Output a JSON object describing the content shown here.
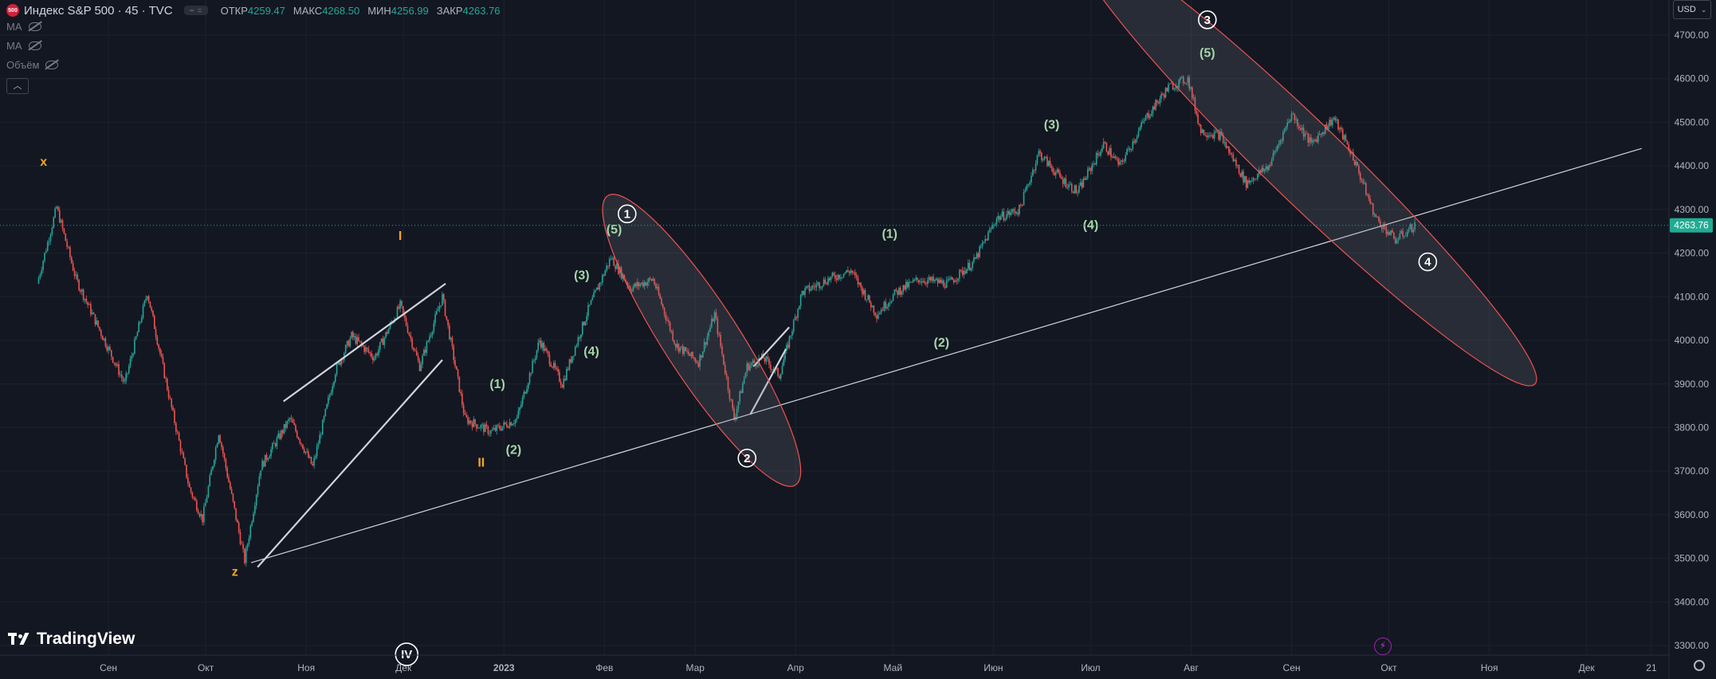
{
  "header": {
    "symbol_badge": "500",
    "symbol_title": "Индекс S&P 500 · 45 · TVC",
    "ohlc": [
      {
        "label": "ОТКР",
        "value": "4259.47"
      },
      {
        "label": "МАКС",
        "value": "4268.50"
      },
      {
        "label": "МИН",
        "value": "4256.99"
      },
      {
        "label": "ЗАКР",
        "value": "4263.76"
      }
    ],
    "indicators": [
      "MA",
      "MA",
      "Объём"
    ],
    "currency": "USD"
  },
  "branding": {
    "name": "TradingView"
  },
  "colors": {
    "background": "#131722",
    "grid": "#1e222d",
    "axis_text": "#b2b5be",
    "up": "#26a69a",
    "down": "#ef5350",
    "trendline": "#d1d4dc",
    "label_green": "#a5d6a7",
    "label_orange": "#f5a623",
    "label_white": "#ffffff",
    "ellipse_stroke": "#ef5350",
    "price_tag": "#22ab94"
  },
  "chart_data": {
    "type": "candlestick",
    "timeframe": "45",
    "ylim": [
      3290,
      4770
    ],
    "y_ticks": [
      3300,
      3400,
      3500,
      3600,
      3700,
      3800,
      3900,
      4000,
      4100,
      4200,
      4300,
      4400,
      4500,
      4600,
      4700
    ],
    "y_tick_labels": [
      "3300.00",
      "3400.00",
      "3500.00",
      "3600.00",
      "3700.00",
      "3800.00",
      "3900.00",
      "4000.00",
      "4100.00",
      "4200.00",
      "4300.00",
      "4400.00",
      "4500.00",
      "4600.00",
      "4700.00"
    ],
    "x_ticks": [
      {
        "label": "Сен",
        "date": "2022-09-01"
      },
      {
        "label": "Окт",
        "date": "2022-10-01"
      },
      {
        "label": "Ноя",
        "date": "2022-11-01"
      },
      {
        "label": "Дек",
        "date": "2022-12-01"
      },
      {
        "label": "2023",
        "date": "2023-01-01"
      },
      {
        "label": "Фев",
        "date": "2023-02-01"
      },
      {
        "label": "Мар",
        "date": "2023-03-01"
      },
      {
        "label": "Апр",
        "date": "2023-04-01"
      },
      {
        "label": "Май",
        "date": "2023-05-01"
      },
      {
        "label": "Июн",
        "date": "2023-06-01"
      },
      {
        "label": "Июл",
        "date": "2023-07-01"
      },
      {
        "label": "Авг",
        "date": "2023-08-01"
      },
      {
        "label": "Сен",
        "date": "2023-09-01"
      },
      {
        "label": "Окт",
        "date": "2023-10-01"
      },
      {
        "label": "Ноя",
        "date": "2023-11-01"
      },
      {
        "label": "Дек",
        "date": "2023-12-01"
      },
      {
        "label": "21",
        "date": "2023-12-21"
      }
    ],
    "last_price": 4263.76,
    "last_price_label": "4263.76",
    "price_path": [
      [
        "2022-08-10",
        4130
      ],
      [
        "2022-08-16",
        4305
      ],
      [
        "2022-08-22",
        4140
      ],
      [
        "2022-08-27",
        4060
      ],
      [
        "2022-09-06",
        3900
      ],
      [
        "2022-09-13",
        4110
      ],
      [
        "2022-09-20",
        3860
      ],
      [
        "2022-09-26",
        3660
      ],
      [
        "2022-09-30",
        3590
      ],
      [
        "2022-10-05",
        3790
      ],
      [
        "2022-10-13",
        3495
      ],
      [
        "2022-10-18",
        3710
      ],
      [
        "2022-10-27",
        3820
      ],
      [
        "2022-11-03",
        3710
      ],
      [
        "2022-11-10",
        3930
      ],
      [
        "2022-11-15",
        4010
      ],
      [
        "2022-11-22",
        3960
      ],
      [
        "2022-11-30",
        4080
      ],
      [
        "2022-12-06",
        3940
      ],
      [
        "2022-12-13",
        4100
      ],
      [
        "2022-12-20",
        3820
      ],
      [
        "2022-12-28",
        3790
      ],
      [
        "2023-01-05",
        3820
      ],
      [
        "2023-01-12",
        4000
      ],
      [
        "2023-01-19",
        3900
      ],
      [
        "2023-01-27",
        4070
      ],
      [
        "2023-02-03",
        4190
      ],
      [
        "2023-02-09",
        4120
      ],
      [
        "2023-02-16",
        4140
      ],
      [
        "2023-02-23",
        3990
      ],
      [
        "2023-03-02",
        3950
      ],
      [
        "2023-03-07",
        4060
      ],
      [
        "2023-03-13",
        3820
      ],
      [
        "2023-03-17",
        3940
      ],
      [
        "2023-03-22",
        3960
      ],
      [
        "2023-03-27",
        3920
      ],
      [
        "2023-04-03",
        4110
      ],
      [
        "2023-04-11",
        4140
      ],
      [
        "2023-04-18",
        4160
      ],
      [
        "2023-04-26",
        4060
      ],
      [
        "2023-05-02",
        4110
      ],
      [
        "2023-05-09",
        4140
      ],
      [
        "2023-05-18",
        4130
      ],
      [
        "2023-05-26",
        4180
      ],
      [
        "2023-06-02",
        4280
      ],
      [
        "2023-06-09",
        4300
      ],
      [
        "2023-06-15",
        4430
      ],
      [
        "2023-06-22",
        4370
      ],
      [
        "2023-06-27",
        4340
      ],
      [
        "2023-07-05",
        4450
      ],
      [
        "2023-07-10",
        4400
      ],
      [
        "2023-07-18",
        4510
      ],
      [
        "2023-07-25",
        4580
      ],
      [
        "2023-07-31",
        4600
      ],
      [
        "2023-08-04",
        4480
      ],
      [
        "2023-08-10",
        4470
      ],
      [
        "2023-08-18",
        4360
      ],
      [
        "2023-08-25",
        4400
      ],
      [
        "2023-09-01",
        4520
      ],
      [
        "2023-09-07",
        4450
      ],
      [
        "2023-09-14",
        4510
      ],
      [
        "2023-09-20",
        4420
      ],
      [
        "2023-09-27",
        4280
      ],
      [
        "2023-10-03",
        4230
      ],
      [
        "2023-10-09",
        4263.76
      ]
    ]
  },
  "wave_labels": [
    {
      "text": "x",
      "color": "orange",
      "date": "2022-08-12",
      "price": 4400
    },
    {
      "text": "z",
      "color": "orange",
      "date": "2022-10-10",
      "price": 3460
    },
    {
      "text": "I",
      "color": "orange",
      "date": "2022-11-30",
      "price": 4230
    },
    {
      "text": "II",
      "color": "orange",
      "date": "2022-12-25",
      "price": 3710
    },
    {
      "text": "(1)",
      "color": "green",
      "date": "2022-12-30",
      "price": 3890
    },
    {
      "text": "(2)",
      "color": "green",
      "date": "2023-01-04",
      "price": 3740
    },
    {
      "text": "(4)",
      "color": "green",
      "date": "2023-01-28",
      "price": 3965
    },
    {
      "text": "(3)",
      "color": "green",
      "date": "2023-01-25",
      "price": 4140
    },
    {
      "text": "(5)",
      "color": "green",
      "date": "2023-02-04",
      "price": 4245
    },
    {
      "text": "(1)",
      "color": "green",
      "date": "2023-04-30",
      "price": 4235
    },
    {
      "text": "(2)",
      "color": "green",
      "date": "2023-05-16",
      "price": 3985
    },
    {
      "text": "(3)",
      "color": "green",
      "date": "2023-06-19",
      "price": 4485
    },
    {
      "text": "(4)",
      "color": "green",
      "date": "2023-07-01",
      "price": 4255
    },
    {
      "text": "(5)",
      "color": "green",
      "date": "2023-08-06",
      "price": 4650
    }
  ],
  "circled_labels": [
    {
      "text": "1",
      "date": "2023-02-08",
      "price": 4290
    },
    {
      "text": "2",
      "date": "2023-03-17",
      "price": 3730
    },
    {
      "text": "3",
      "date": "2023-08-06",
      "price": 4735
    },
    {
      "text": "4",
      "date": "2023-10-13",
      "price": 4180
    },
    {
      "text": "IV",
      "date": "2022-12-02",
      "price": 3280
    }
  ],
  "trendlines": [
    {
      "from": [
        "2022-10-15",
        3490
      ],
      "to": [
        "2023-12-18",
        4440
      ]
    },
    {
      "from": [
        "2022-10-17",
        3480
      ],
      "to": [
        "2022-12-13",
        3955
      ]
    },
    {
      "from": [
        "2022-10-25",
        3860
      ],
      "to": [
        "2022-12-14",
        4130
      ]
    },
    {
      "from": [
        "2023-03-18",
        3830
      ],
      "to": [
        "2023-03-29",
        3980
      ]
    },
    {
      "from": [
        "2023-03-19",
        3940
      ],
      "to": [
        "2023-03-30",
        4030
      ]
    }
  ],
  "ellipses": [
    {
      "center": [
        "2023-03-03",
        4000
      ],
      "rx_days": 28,
      "ry_price": 205,
      "rotate": 57
    },
    {
      "center": [
        "2023-09-05",
        4410
      ],
      "rx_days": 52,
      "ry_price": 215,
      "rotate": 44
    }
  ]
}
